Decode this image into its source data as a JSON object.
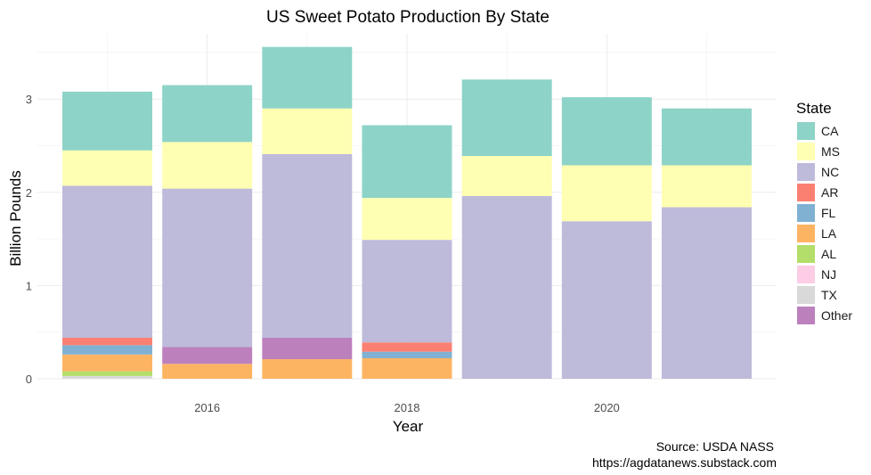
{
  "chart_data": {
    "type": "bar",
    "stacked": true,
    "title": "US Sweet Potato Production By State",
    "xlabel": "Year",
    "ylabel": "Billion Pounds",
    "x": [
      2015,
      2016,
      2017,
      2018,
      2019,
      2020,
      2021
    ],
    "x_ticks": [
      2016,
      2018,
      2020
    ],
    "x_tick_labels": [
      "2016",
      "2018",
      "2020"
    ],
    "y_ticks": [
      0,
      1,
      2,
      3
    ],
    "y_tick_labels": [
      "0",
      "1",
      "2",
      "3"
    ],
    "xlim": [
      2014.3,
      2021.7
    ],
    "ylim": [
      0,
      3.7
    ],
    "grid": true,
    "legend": {
      "title": "State",
      "position": "right",
      "entries": [
        "CA",
        "MS",
        "NC",
        "AR",
        "FL",
        "LA",
        "AL",
        "NJ",
        "TX",
        "Other"
      ]
    },
    "stack_order_bottom_to_top": [
      "TX",
      "AL",
      "LA",
      "FL",
      "AR",
      "NJ",
      "Other",
      "NC",
      "MS",
      "CA"
    ],
    "series": [
      {
        "name": "CA",
        "color": "#8DD3C7",
        "values": [
          0.63,
          0.61,
          0.66,
          0.78,
          0.82,
          0.73,
          0.61
        ]
      },
      {
        "name": "MS",
        "color": "#FFFFB3",
        "values": [
          0.38,
          0.5,
          0.49,
          0.45,
          0.43,
          0.6,
          0.45
        ]
      },
      {
        "name": "NC",
        "color": "#BEBADA",
        "values": [
          1.63,
          1.7,
          1.97,
          1.1,
          1.96,
          1.69,
          1.84
        ]
      },
      {
        "name": "AR",
        "color": "#FB8072",
        "values": [
          0.08,
          0,
          0,
          0.1,
          0,
          0,
          0
        ]
      },
      {
        "name": "FL",
        "color": "#80B1D3",
        "values": [
          0.1,
          0,
          0,
          0.07,
          0,
          0,
          0
        ]
      },
      {
        "name": "LA",
        "color": "#FDB462",
        "values": [
          0.18,
          0.16,
          0.21,
          0.22,
          0,
          0,
          0
        ]
      },
      {
        "name": "AL",
        "color": "#B3DE69",
        "values": [
          0.05,
          0,
          0,
          0,
          0,
          0,
          0
        ]
      },
      {
        "name": "NJ",
        "color": "#FCCDE5",
        "values": [
          0,
          0,
          0,
          0,
          0,
          0,
          0
        ]
      },
      {
        "name": "TX",
        "color": "#D9D9D9",
        "values": [
          0.03,
          0,
          0,
          0,
          0,
          0,
          0
        ]
      },
      {
        "name": "Other",
        "color": "#BC80BD",
        "values": [
          0,
          0.18,
          0.23,
          0,
          0,
          0,
          0
        ]
      }
    ],
    "caption": [
      "Source: USDA NASS",
      "https://agdatanews.substack.com"
    ]
  }
}
